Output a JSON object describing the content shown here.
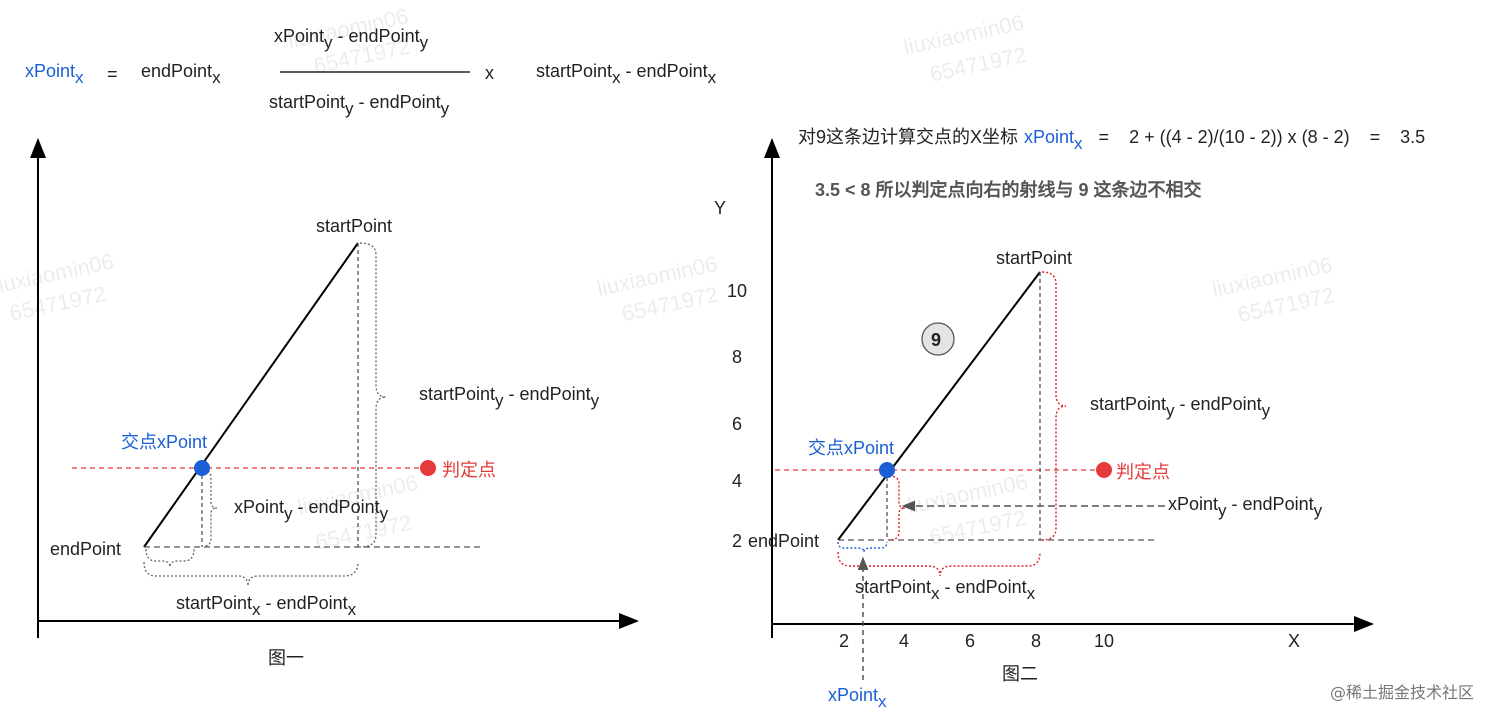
{
  "formula": {
    "lhs": "xPoint",
    "lhs_sub": "x",
    "eq": "=",
    "term1": "endPoint",
    "term1_sub": "x",
    "num_a": "xPoint",
    "num_a_sub": "y",
    "num_b": " - endPoint",
    "num_b_sub": "y",
    "den_a": "startPoint",
    "den_a_sub": "y",
    "den_b": " - endPoint",
    "den_b_sub": "y",
    "times": "x",
    "tail_a": "startPoint",
    "tail_a_sub": "x",
    "tail_b": " - endPoint",
    "tail_b_sub": "x"
  },
  "fig1": {
    "caption": "图一",
    "start_point": "startPoint",
    "end_point": "endPoint",
    "intersection": "交点xPoint",
    "judge_point": "判定点",
    "dy_a": "startPoint",
    "dy_a_sub": "y",
    "dy_b": " - endPoint",
    "dy_b_sub": "y",
    "sub_a": "xPoint",
    "sub_a_sub": "y",
    "sub_b": " - endPoint",
    "sub_b_sub": "y",
    "dx_a": "startPoint",
    "dx_a_sub": "x",
    "dx_b": " - endPoint",
    "dx_b_sub": "x"
  },
  "fig2": {
    "caption": "图二",
    "calc_prefix": "对9这条边计算交点的X坐标",
    "calc_var": "xPoint",
    "calc_var_sub": "x",
    "calc_eq": "=",
    "calc_expr": "2 + ((4 - 2)/(10 - 2)) x (8 - 2)",
    "calc_eq2": "=",
    "calc_result": "3.5",
    "conclusion": "3.5 < 8 所以判定点向右的射线与 9 这条边不相交",
    "y_label": "Y",
    "x_label": "X",
    "y_ticks": [
      "10",
      "8",
      "6",
      "4",
      "2"
    ],
    "x_ticks": [
      "2",
      "4",
      "6",
      "8",
      "10"
    ],
    "edge_badge": "9",
    "start_point": "startPoint",
    "end_point": "endPoint",
    "intersection": "交点xPoint",
    "judge_point": "判定点",
    "dy_a": "startPoint",
    "dy_a_sub": "y",
    "dy_b": " - endPoint",
    "dy_b_sub": "y",
    "sub_a": "xPoint",
    "sub_a_sub": "y",
    "sub_b": " - endPoint",
    "sub_b_sub": "y",
    "dx_a": "startPoint",
    "dx_a_sub": "x",
    "dx_b": " - endPoint",
    "dx_b_sub": "x",
    "xpoint_label": "xPoint",
    "xpoint_label_sub": "x"
  },
  "watermark": {
    "line1": "liuxiaomin06",
    "line2": "65471972"
  },
  "brand": "@稀土掘金技术社区",
  "colors": {
    "blue": "#1a5fd6",
    "red": "#e63b3b",
    "axis": "#000000",
    "guide": "#555555",
    "red_brace": "#e02020",
    "blue_brace": "#1a5fd6"
  }
}
